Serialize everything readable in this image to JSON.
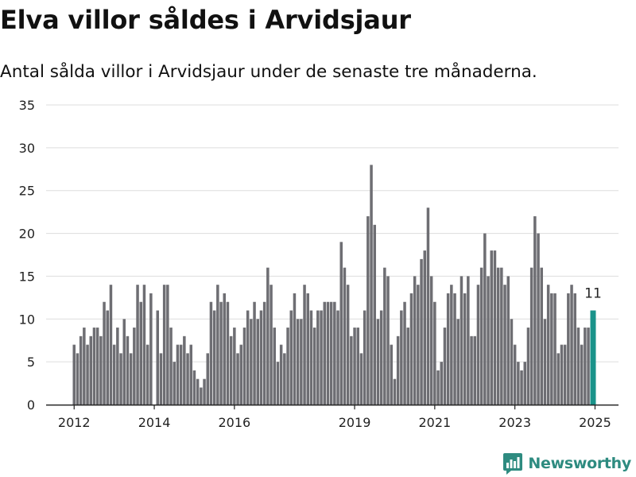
{
  "header": {
    "title": "Elva villor såldes i Arvidsjaur",
    "subtitle": "Antal sålda villor i Arvidsjaur under de senaste tre månaderna."
  },
  "brand": {
    "name": "Newsworthy",
    "icon": "newsworthy-chart-logo-icon"
  },
  "colors": {
    "bar": "#6e6e73",
    "highlight": "#1a938a",
    "grid": "#dddddd",
    "axis": "#222222"
  },
  "chart_data": {
    "type": "bar",
    "title": "Elva villor såldes i Arvidsjaur",
    "subtitle": "Antal sålda villor i Arvidsjaur under de senaste tre månaderna.",
    "xlabel": "",
    "ylabel": "",
    "ylim": [
      0,
      35
    ],
    "yticks": [
      0,
      5,
      10,
      15,
      20,
      25,
      30,
      35
    ],
    "x_ticks": [
      {
        "label": "2012",
        "index": 0
      },
      {
        "label": "2014",
        "index": 24
      },
      {
        "label": "2016",
        "index": 48
      },
      {
        "label": "2019",
        "index": 84
      },
      {
        "label": "2021",
        "index": 108
      },
      {
        "label": "2023",
        "index": 132
      },
      {
        "label": "2025",
        "index": 156
      }
    ],
    "grid": true,
    "highlight_label": "11",
    "values": [
      7,
      6,
      8,
      9,
      7,
      8,
      9,
      9,
      8,
      12,
      11,
      14,
      7,
      9,
      6,
      10,
      8,
      6,
      9,
      14,
      12,
      14,
      7,
      13,
      0,
      11,
      6,
      14,
      14,
      9,
      5,
      7,
      7,
      8,
      6,
      7,
      4,
      3,
      2,
      3,
      6,
      12,
      11,
      14,
      12,
      13,
      12,
      8,
      9,
      6,
      7,
      9,
      11,
      10,
      12,
      10,
      11,
      12,
      16,
      14,
      9,
      5,
      7,
      6,
      9,
      11,
      13,
      10,
      10,
      14,
      13,
      11,
      9,
      11,
      11,
      12,
      12,
      12,
      12,
      11,
      19,
      16,
      14,
      8,
      9,
      9,
      6,
      11,
      22,
      28,
      21,
      10,
      11,
      16,
      15,
      7,
      3,
      8,
      11,
      12,
      9,
      13,
      15,
      14,
      17,
      18,
      23,
      15,
      12,
      4,
      5,
      9,
      13,
      14,
      13,
      10,
      15,
      13,
      15,
      8,
      8,
      14,
      16,
      20,
      15,
      18,
      18,
      16,
      16,
      14,
      15,
      10,
      7,
      5,
      4,
      5,
      9,
      16,
      22,
      20,
      16,
      10,
      14,
      13,
      13,
      6,
      7,
      7,
      13,
      14,
      13,
      9,
      7,
      9,
      9,
      11
    ]
  }
}
